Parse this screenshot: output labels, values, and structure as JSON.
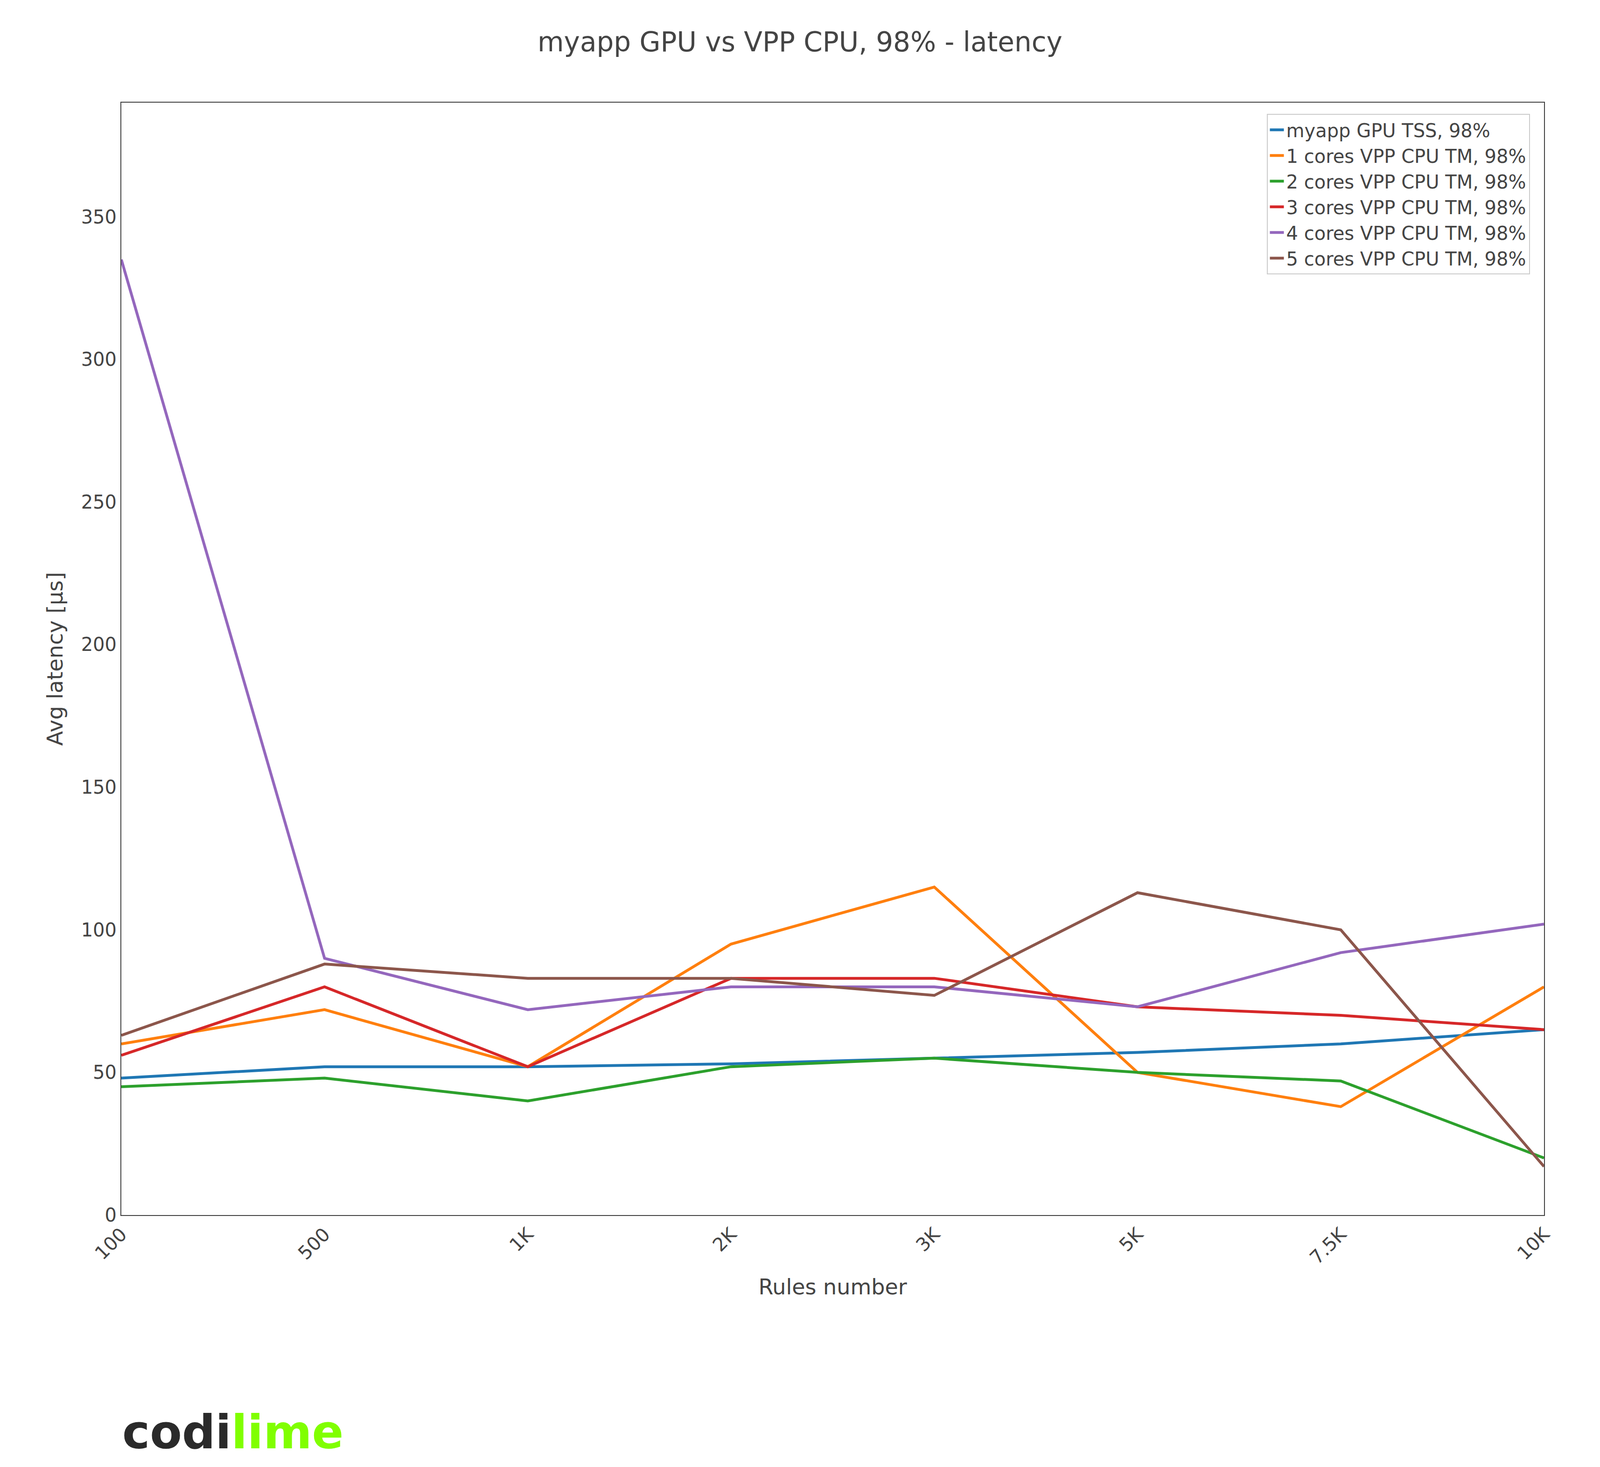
{
  "chart_data": {
    "type": "line",
    "title": "myapp GPU vs VPP CPU, 98% - latency",
    "xlabel": "Rules number",
    "ylabel": "Avg latency [µs]",
    "categories": [
      "100",
      "500",
      "1K",
      "2K",
      "3K",
      "5K",
      "7.5K",
      "10K"
    ],
    "series": [
      {
        "name": "myapp GPU TSS, 98%",
        "color": "#1f77b4",
        "values": [
          48,
          52,
          52,
          53,
          55,
          57,
          60,
          65
        ]
      },
      {
        "name": "1 cores VPP CPU TM, 98%",
        "color": "#ff7f0e",
        "values": [
          60,
          72,
          52,
          95,
          115,
          50,
          38,
          80
        ]
      },
      {
        "name": "2 cores VPP CPU TM, 98%",
        "color": "#2ca02c",
        "values": [
          45,
          48,
          40,
          52,
          55,
          50,
          47,
          20
        ]
      },
      {
        "name": "3 cores VPP CPU TM, 98%",
        "color": "#d62728",
        "values": [
          56,
          80,
          52,
          83,
          83,
          73,
          70,
          65
        ]
      },
      {
        "name": "4 cores VPP CPU TM, 98%",
        "color": "#9467bd",
        "values": [
          335,
          90,
          72,
          80,
          80,
          73,
          92,
          102
        ]
      },
      {
        "name": "5 cores VPP CPU TM, 98%",
        "color": "#8c564b",
        "values": [
          63,
          88,
          83,
          83,
          77,
          113,
          100,
          17
        ]
      }
    ],
    "ylim": [
      0,
      390
    ],
    "yticks": [
      0,
      50,
      100,
      150,
      200,
      250,
      300,
      350
    ],
    "grid": false,
    "legend": "upper right",
    "annotations": [
      {
        "text": "codi",
        "color": "#2a2a2a"
      },
      {
        "text": "lime",
        "color": "#80ff00"
      }
    ]
  }
}
